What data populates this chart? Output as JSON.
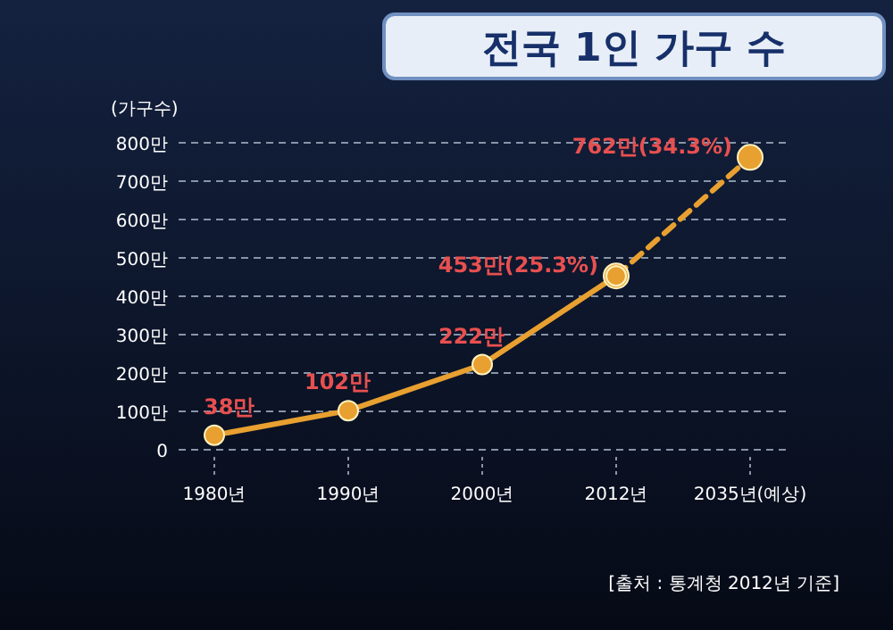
{
  "chart_data": {
    "type": "line",
    "title": "전국 1인 가구 수",
    "ylabel": "(가구수)",
    "categories": [
      "1980년",
      "1990년",
      "2000년",
      "2012년",
      "2035년(예상)"
    ],
    "series": [
      {
        "color": "#e8a030",
        "line_style": "solid",
        "values": [
          38,
          102,
          222,
          453,
          null
        ],
        "value_labels": [
          "38만",
          "102만",
          "222만",
          "453만(25.3%)",
          null
        ]
      },
      {
        "color": "#e8a030",
        "line_style": "dashed",
        "values": [
          null,
          null,
          null,
          453,
          762
        ],
        "value_labels": [
          null,
          null,
          null,
          null,
          "762만(34.3%)"
        ]
      }
    ],
    "ylim": [
      0,
      800
    ],
    "yticks": [
      0,
      {
        "value": 100,
        "label": "100만"
      },
      {
        "value": 200,
        "label": "200만"
      },
      {
        "value": 300,
        "label": "300만"
      },
      {
        "value": 400,
        "label": "400만"
      },
      {
        "value": 500,
        "label": "500만"
      },
      {
        "value": 600,
        "label": "600만"
      },
      {
        "value": 700,
        "label": "700만"
      },
      {
        "value": 800,
        "label": "800만"
      }
    ],
    "grid": "y",
    "marker": "circle",
    "annotations": [
      "[출처 : 통계청 2012년 기준]"
    ]
  }
}
